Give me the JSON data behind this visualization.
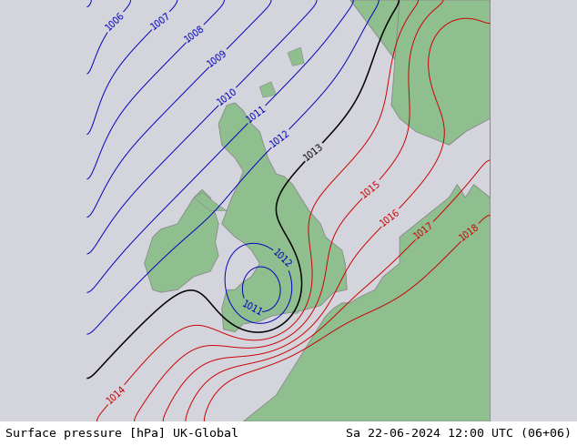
{
  "title_left": "Surface pressure [hPa] UK-Global",
  "title_right": "Sa 22-06-2024 12:00 UTC (06+06)",
  "title_fontsize": 9.5,
  "bg_color": "#d4d4dc",
  "land_color": "#8fbe8f",
  "land_edge": "#888888",
  "contour_blue_color": "#0000bb",
  "contour_black_color": "#000000",
  "contour_red_color": "#cc0000",
  "label_fontsize": 7,
  "figsize": [
    6.34,
    4.9
  ],
  "dpi": 100
}
